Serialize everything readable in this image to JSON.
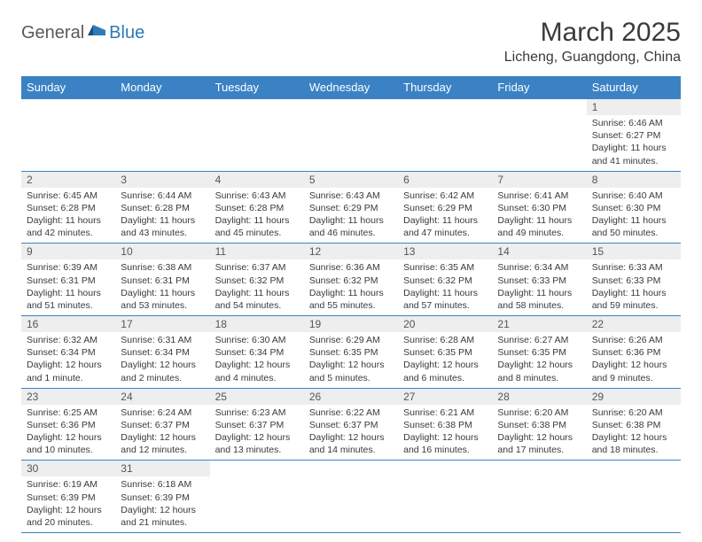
{
  "logo": {
    "part1": "General",
    "part2": "Blue"
  },
  "title": "March 2025",
  "location": "Licheng, Guangdong, China",
  "colors": {
    "header_bg": "#3b82c4",
    "header_text": "#ffffff",
    "daynum_bg": "#eeeeee",
    "border": "#3b82c4",
    "text": "#3a3a3a",
    "logo_blue": "#2e7ab8"
  },
  "weekdays": [
    "Sunday",
    "Monday",
    "Tuesday",
    "Wednesday",
    "Thursday",
    "Friday",
    "Saturday"
  ],
  "weeks": [
    [
      null,
      null,
      null,
      null,
      null,
      null,
      {
        "n": "1",
        "sunrise": "6:46 AM",
        "sunset": "6:27 PM",
        "daylight": "11 hours and 41 minutes."
      }
    ],
    [
      {
        "n": "2",
        "sunrise": "6:45 AM",
        "sunset": "6:28 PM",
        "daylight": "11 hours and 42 minutes."
      },
      {
        "n": "3",
        "sunrise": "6:44 AM",
        "sunset": "6:28 PM",
        "daylight": "11 hours and 43 minutes."
      },
      {
        "n": "4",
        "sunrise": "6:43 AM",
        "sunset": "6:28 PM",
        "daylight": "11 hours and 45 minutes."
      },
      {
        "n": "5",
        "sunrise": "6:43 AM",
        "sunset": "6:29 PM",
        "daylight": "11 hours and 46 minutes."
      },
      {
        "n": "6",
        "sunrise": "6:42 AM",
        "sunset": "6:29 PM",
        "daylight": "11 hours and 47 minutes."
      },
      {
        "n": "7",
        "sunrise": "6:41 AM",
        "sunset": "6:30 PM",
        "daylight": "11 hours and 49 minutes."
      },
      {
        "n": "8",
        "sunrise": "6:40 AM",
        "sunset": "6:30 PM",
        "daylight": "11 hours and 50 minutes."
      }
    ],
    [
      {
        "n": "9",
        "sunrise": "6:39 AM",
        "sunset": "6:31 PM",
        "daylight": "11 hours and 51 minutes."
      },
      {
        "n": "10",
        "sunrise": "6:38 AM",
        "sunset": "6:31 PM",
        "daylight": "11 hours and 53 minutes."
      },
      {
        "n": "11",
        "sunrise": "6:37 AM",
        "sunset": "6:32 PM",
        "daylight": "11 hours and 54 minutes."
      },
      {
        "n": "12",
        "sunrise": "6:36 AM",
        "sunset": "6:32 PM",
        "daylight": "11 hours and 55 minutes."
      },
      {
        "n": "13",
        "sunrise": "6:35 AM",
        "sunset": "6:32 PM",
        "daylight": "11 hours and 57 minutes."
      },
      {
        "n": "14",
        "sunrise": "6:34 AM",
        "sunset": "6:33 PM",
        "daylight": "11 hours and 58 minutes."
      },
      {
        "n": "15",
        "sunrise": "6:33 AM",
        "sunset": "6:33 PM",
        "daylight": "11 hours and 59 minutes."
      }
    ],
    [
      {
        "n": "16",
        "sunrise": "6:32 AM",
        "sunset": "6:34 PM",
        "daylight": "12 hours and 1 minute."
      },
      {
        "n": "17",
        "sunrise": "6:31 AM",
        "sunset": "6:34 PM",
        "daylight": "12 hours and 2 minutes."
      },
      {
        "n": "18",
        "sunrise": "6:30 AM",
        "sunset": "6:34 PM",
        "daylight": "12 hours and 4 minutes."
      },
      {
        "n": "19",
        "sunrise": "6:29 AM",
        "sunset": "6:35 PM",
        "daylight": "12 hours and 5 minutes."
      },
      {
        "n": "20",
        "sunrise": "6:28 AM",
        "sunset": "6:35 PM",
        "daylight": "12 hours and 6 minutes."
      },
      {
        "n": "21",
        "sunrise": "6:27 AM",
        "sunset": "6:35 PM",
        "daylight": "12 hours and 8 minutes."
      },
      {
        "n": "22",
        "sunrise": "6:26 AM",
        "sunset": "6:36 PM",
        "daylight": "12 hours and 9 minutes."
      }
    ],
    [
      {
        "n": "23",
        "sunrise": "6:25 AM",
        "sunset": "6:36 PM",
        "daylight": "12 hours and 10 minutes."
      },
      {
        "n": "24",
        "sunrise": "6:24 AM",
        "sunset": "6:37 PM",
        "daylight": "12 hours and 12 minutes."
      },
      {
        "n": "25",
        "sunrise": "6:23 AM",
        "sunset": "6:37 PM",
        "daylight": "12 hours and 13 minutes."
      },
      {
        "n": "26",
        "sunrise": "6:22 AM",
        "sunset": "6:37 PM",
        "daylight": "12 hours and 14 minutes."
      },
      {
        "n": "27",
        "sunrise": "6:21 AM",
        "sunset": "6:38 PM",
        "daylight": "12 hours and 16 minutes."
      },
      {
        "n": "28",
        "sunrise": "6:20 AM",
        "sunset": "6:38 PM",
        "daylight": "12 hours and 17 minutes."
      },
      {
        "n": "29",
        "sunrise": "6:20 AM",
        "sunset": "6:38 PM",
        "daylight": "12 hours and 18 minutes."
      }
    ],
    [
      {
        "n": "30",
        "sunrise": "6:19 AM",
        "sunset": "6:39 PM",
        "daylight": "12 hours and 20 minutes."
      },
      {
        "n": "31",
        "sunrise": "6:18 AM",
        "sunset": "6:39 PM",
        "daylight": "12 hours and 21 minutes."
      },
      null,
      null,
      null,
      null,
      null
    ]
  ],
  "labels": {
    "sunrise": "Sunrise:",
    "sunset": "Sunset:",
    "daylight": "Daylight:"
  }
}
